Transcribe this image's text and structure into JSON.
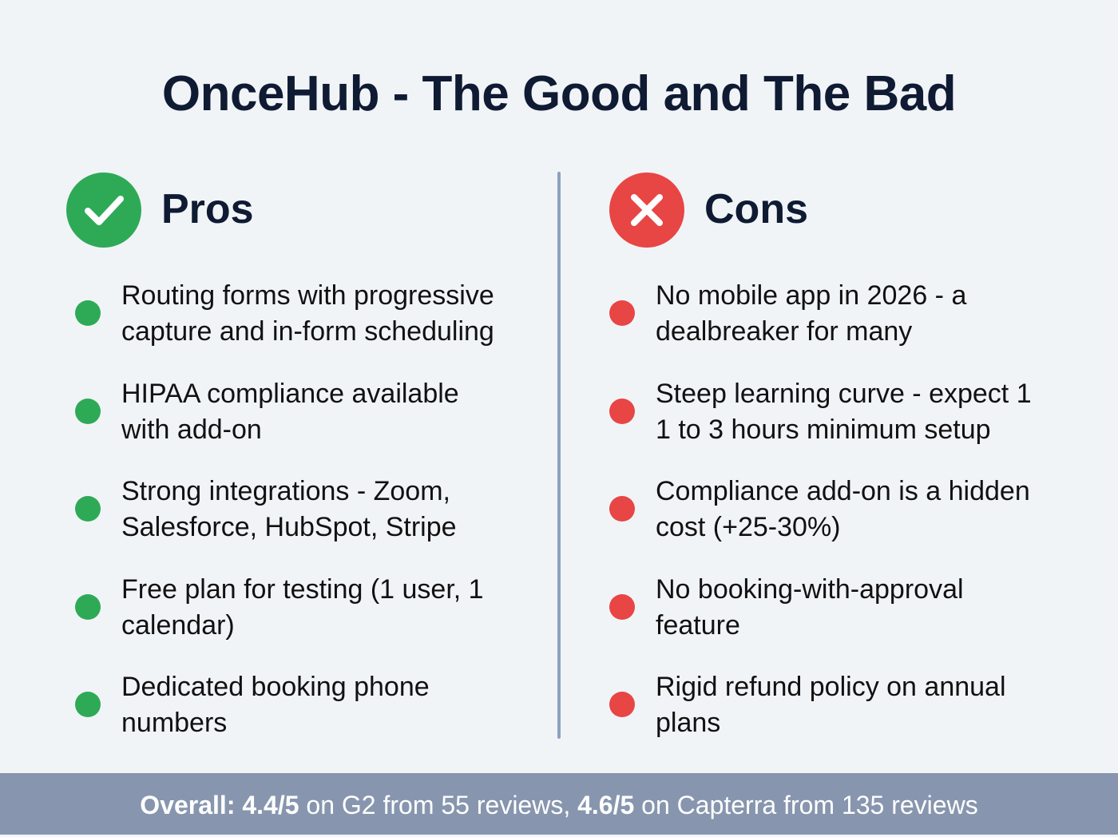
{
  "title": "OnceHub - The Good and The Bad",
  "colors": {
    "pros": "#2eaa57",
    "cons": "#e84545",
    "divider": "#8fa0bd",
    "footer_bg": "#8796ae"
  },
  "pros": {
    "label": "Pros",
    "icon": "check-circle-icon",
    "items": [
      {
        "line1": "Routing forms with progressive",
        "line2": "capture and in-form scheduling"
      },
      {
        "line1": "HIPAA compliance available",
        "line2": "with add-on"
      },
      {
        "line1": "Strong integrations - Zoom,",
        "line2": "Salesforce, HubSpot, Stripe"
      },
      {
        "line1": "Free plan for testing (1 user, 1",
        "line2": "calendar)"
      },
      {
        "line1": "Dedicated booking phone",
        "line2": "numbers"
      }
    ]
  },
  "cons": {
    "label": "Cons",
    "icon": "x-circle-icon",
    "items": [
      {
        "line1": "No mobile app in 2026 - a",
        "line2": "dealbreaker for many"
      },
      {
        "line1": "Steep learning curve - expect 1",
        "line2": "1 to 3 hours minimum setup"
      },
      {
        "line1": "Compliance add-on is a hidden",
        "line2": "cost (+25-30%)"
      },
      {
        "line1": "No booking-with-approval",
        "line2": "feature"
      },
      {
        "line1": "Rigid refund policy on annual",
        "line2": "plans"
      }
    ]
  },
  "footer": {
    "prefix": "Overall:",
    "g2_score": "4.4/5",
    "g2_text": "on G2 from 55 reviews,",
    "capterra_score": "4.6/5",
    "capterra_text": "on Capterra from 135 reviews"
  }
}
